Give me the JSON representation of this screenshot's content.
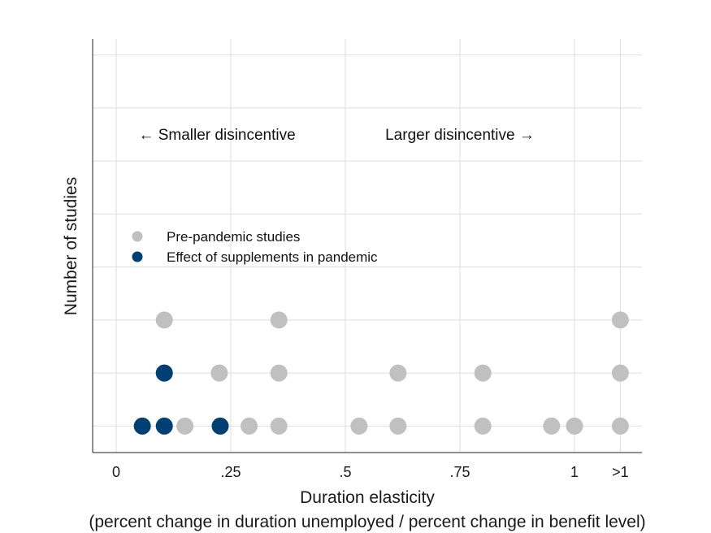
{
  "chart_data": {
    "type": "scatter",
    "subtype": "dot-plot",
    "xlabel": "Duration elasticity",
    "xlabel_sub": "(percent change in duration unemployed / percent change in benefit level)",
    "ylabel": "Number of studies",
    "x_ticks": [
      {
        "value": 0,
        "label": "0"
      },
      {
        "value": 0.25,
        "label": ".25"
      },
      {
        "value": 0.5,
        "label": ".5"
      },
      {
        "value": 0.75,
        "label": ".75"
      },
      {
        "value": 1,
        "label": "1"
      },
      {
        "value": 1.1,
        "label": ">1"
      }
    ],
    "xlim": [
      -0.05,
      1.15
    ],
    "ylim": [
      0.5,
      8.3
    ],
    "y_gridlines": [
      1,
      2,
      3,
      4,
      5,
      6,
      7,
      8
    ],
    "grid": true,
    "annotations": [
      {
        "text": "← Smaller disincentive",
        "x": 0.22,
        "y": 6.4
      },
      {
        "text": "Larger disincentive →",
        "x": 0.75,
        "y": 6.4
      }
    ],
    "legend": {
      "position": "upper-left",
      "entries": [
        {
          "label": "Pre-pandemic studies",
          "color": "#c0c0c0"
        },
        {
          "label": "Effect of supplements in pandemic",
          "color": "#003f72"
        }
      ]
    },
    "series": [
      {
        "name": "Pre-pandemic studies",
        "color": "#c0c0c0",
        "points": [
          {
            "x": 0.105,
            "y": 2
          },
          {
            "x": 0.105,
            "y": 3
          },
          {
            "x": 0.15,
            "y": 1
          },
          {
            "x": 0.225,
            "y": 2
          },
          {
            "x": 0.29,
            "y": 1
          },
          {
            "x": 0.355,
            "y": 1
          },
          {
            "x": 0.355,
            "y": 2
          },
          {
            "x": 0.355,
            "y": 3
          },
          {
            "x": 0.53,
            "y": 1
          },
          {
            "x": 0.615,
            "y": 1
          },
          {
            "x": 0.615,
            "y": 2
          },
          {
            "x": 0.8,
            "y": 1
          },
          {
            "x": 0.8,
            "y": 2
          },
          {
            "x": 0.95,
            "y": 1
          },
          {
            "x": 1.0,
            "y": 1
          },
          {
            "x": 1.1,
            "y": 1
          },
          {
            "x": 1.1,
            "y": 2
          },
          {
            "x": 1.1,
            "y": 3
          }
        ]
      },
      {
        "name": "Effect of supplements in pandemic",
        "color": "#003f72",
        "points": [
          {
            "x": 0.057,
            "y": 1
          },
          {
            "x": 0.105,
            "y": 1
          },
          {
            "x": 0.105,
            "y": 2
          },
          {
            "x": 0.227,
            "y": 1
          }
        ]
      }
    ]
  }
}
